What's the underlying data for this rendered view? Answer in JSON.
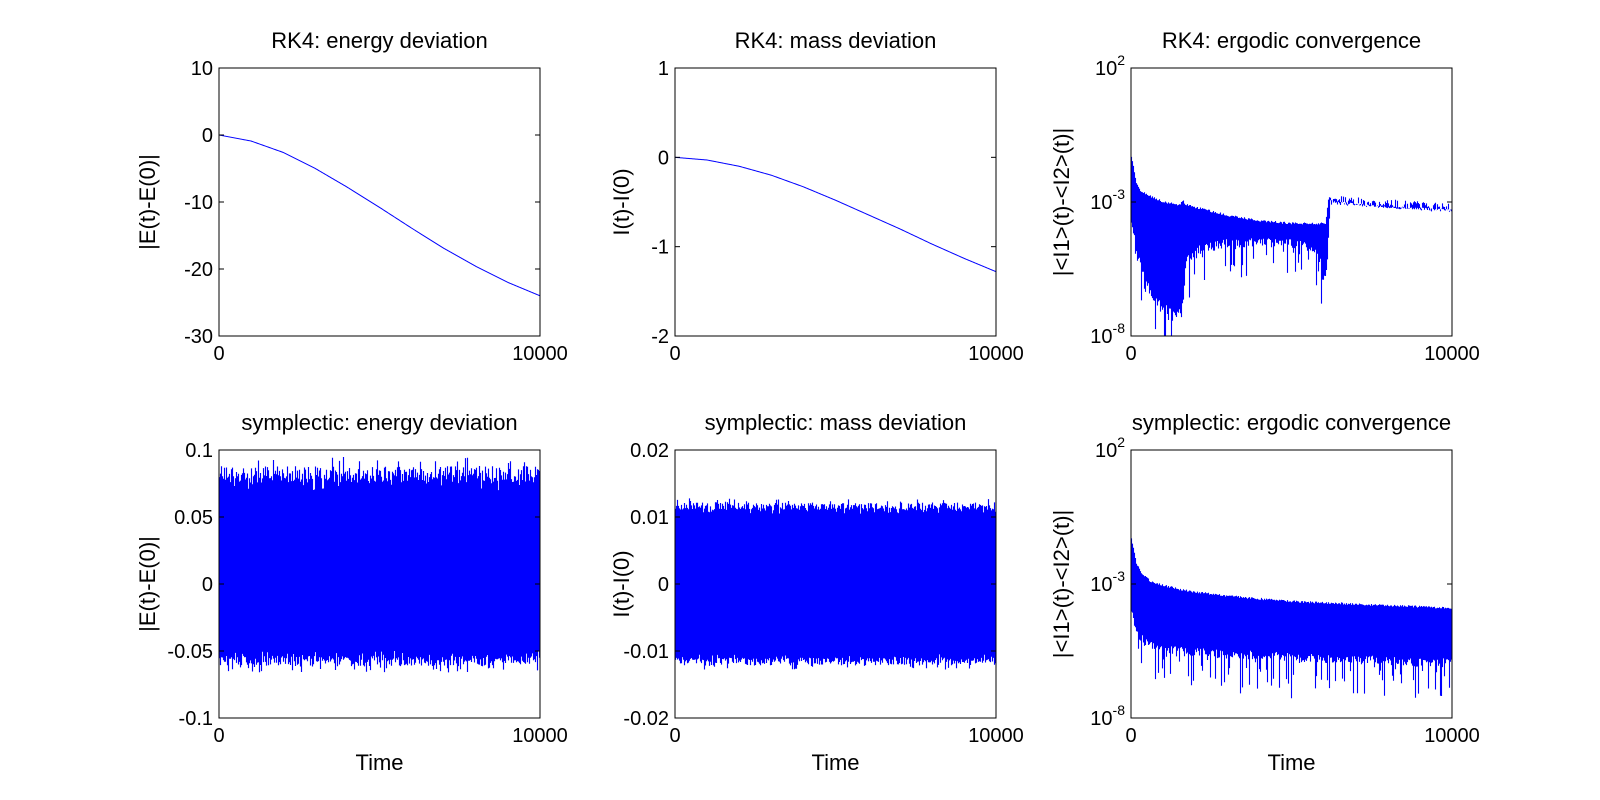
{
  "figure": {
    "background": "#ffffff",
    "line_color": "#0000ff",
    "axis_color": "#000000"
  },
  "chart_data": [
    {
      "type": "line",
      "title": "RK4: energy deviation",
      "xlabel": "",
      "ylabel": "|E(t)-E(0)|",
      "xlim": [
        0,
        10000
      ],
      "ylim": [
        -30,
        10
      ],
      "yscale": "linear",
      "xticks": [
        0,
        10000
      ],
      "xtick_labels": [
        "0",
        "10000"
      ],
      "yticks": [
        10,
        0,
        -10,
        -20,
        -30
      ],
      "ytick_labels": [
        "10",
        "0",
        "-10",
        "-20",
        "-30"
      ],
      "x": [
        0,
        1000,
        2000,
        3000,
        4000,
        5000,
        6000,
        7000,
        8000,
        9000,
        10000
      ],
      "series": [
        {
          "name": "deviation",
          "values": [
            0,
            -0.9,
            -2.6,
            -5.0,
            -7.8,
            -10.8,
            -13.9,
            -16.9,
            -19.6,
            -22.0,
            -24.0
          ]
        }
      ],
      "noise": null
    },
    {
      "type": "line",
      "title": "RK4: mass deviation",
      "xlabel": "",
      "ylabel": "I(t)-I(0)",
      "xlim": [
        0,
        10000
      ],
      "ylim": [
        -2,
        1
      ],
      "yscale": "linear",
      "xticks": [
        0,
        10000
      ],
      "xtick_labels": [
        "0",
        "10000"
      ],
      "yticks": [
        1,
        0,
        -1,
        -2
      ],
      "ytick_labels": [
        "1",
        "0",
        "-1",
        "-2"
      ],
      "x": [
        0,
        1000,
        2000,
        3000,
        4000,
        5000,
        6000,
        7000,
        8000,
        9000,
        10000
      ],
      "series": [
        {
          "name": "deviation",
          "values": [
            0,
            -0.03,
            -0.1,
            -0.2,
            -0.33,
            -0.48,
            -0.64,
            -0.8,
            -0.97,
            -1.13,
            -1.28
          ]
        }
      ],
      "noise": null
    },
    {
      "type": "line",
      "title": "RK4: ergodic convergence",
      "xlabel": "",
      "ylabel": "|<I1>(t)-<I2>(t)|",
      "xlim": [
        0,
        10000
      ],
      "ylim": [
        -8,
        2
      ],
      "yscale": "log",
      "xticks": [
        0,
        10000
      ],
      "xtick_labels": [
        "0",
        "10000"
      ],
      "yticks": [
        2,
        -3,
        -8
      ],
      "ytick_labels": [
        "10",
        "10",
        "10"
      ],
      "ytick_exponents": [
        "2",
        "-3",
        "-8"
      ],
      "upper_envelope_log10": {
        "x": [
          0,
          60,
          150,
          300,
          600,
          1000,
          1500,
          1600,
          1700,
          2000,
          3000,
          4000,
          5000,
          6000,
          6050,
          6150,
          6300,
          8000,
          10000
        ],
        "values": [
          -1.3,
          -1.6,
          -2.3,
          -2.6,
          -2.8,
          -3.0,
          -3.1,
          -2.95,
          -3.1,
          -3.2,
          -3.5,
          -3.7,
          -3.8,
          -3.8,
          -3.8,
          -2.8,
          -3.0,
          -3.2,
          -3.3
        ]
      },
      "lower_envelope_log10": {
        "x": [
          0,
          100,
          300,
          600,
          1000,
          1300,
          1600,
          1700,
          2000,
          3000,
          5000,
          5600,
          5900,
          6000,
          6100,
          6200,
          6300,
          10000
        ],
        "values": [
          -4.0,
          -4.5,
          -5.5,
          -6.5,
          -7.0,
          -7.3,
          -7.0,
          -5.2,
          -4.9,
          -4.6,
          -4.6,
          -4.8,
          -5.2,
          -6.0,
          -5.5,
          -3.0,
          -3.0,
          -3.3
        ]
      },
      "noise": {
        "spikes_below_lower": 1.5,
        "spike_frequency": 0.25,
        "spike_xmax": 6200
      }
    },
    {
      "type": "line",
      "title": "symplectic: energy deviation",
      "xlabel": "Time",
      "ylabel": "|E(t)-E(0)|",
      "xlim": [
        0,
        10000
      ],
      "ylim": [
        -0.1,
        0.1
      ],
      "yscale": "linear",
      "xticks": [
        0,
        10000
      ],
      "xtick_labels": [
        "0",
        "10000"
      ],
      "yticks": [
        0.1,
        0.05,
        0,
        -0.05,
        -0.1
      ],
      "ytick_labels": [
        "0.1",
        "0.05",
        "0",
        "-0.05",
        "-0.1"
      ],
      "band": {
        "upper_min": 0.07,
        "upper_max": 0.095,
        "lower_min": -0.066,
        "lower_max": -0.05
      },
      "noise": {
        "spike_frequency": 0.3
      }
    },
    {
      "type": "line",
      "title": "symplectic: mass deviation",
      "xlabel": "Time",
      "ylabel": "I(t)-I(0)",
      "xlim": [
        0,
        10000
      ],
      "ylim": [
        -0.02,
        0.02
      ],
      "yscale": "linear",
      "xticks": [
        0,
        10000
      ],
      "xtick_labels": [
        "0",
        "10000"
      ],
      "yticks": [
        0.02,
        0.01,
        0,
        -0.01,
        -0.02
      ],
      "ytick_labels": [
        "0.02",
        "0.01",
        "0",
        "-0.01",
        "-0.02"
      ],
      "band": {
        "upper_min": 0.0105,
        "upper_max": 0.0128,
        "lower_min": -0.0128,
        "lower_max": -0.0105
      },
      "noise": {
        "spike_frequency": 0.3
      }
    },
    {
      "type": "line",
      "title": "symplectic: ergodic convergence",
      "xlabel": "Time",
      "ylabel": "|<I1>(t)-<I2>(t)|",
      "xlim": [
        0,
        10000
      ],
      "ylim": [
        -8,
        2
      ],
      "yscale": "log",
      "xticks": [
        0,
        10000
      ],
      "xtick_labels": [
        "0",
        "10000"
      ],
      "yticks": [
        2,
        -3,
        -8
      ],
      "ytick_labels": [
        "10",
        "10",
        "10"
      ],
      "ytick_exponents": [
        "2",
        "-3",
        "-8"
      ],
      "upper_envelope_log10": {
        "x": [
          0,
          60,
          150,
          300,
          600,
          1000,
          1500,
          2000,
          3000,
          4000,
          5000,
          6000,
          7000,
          8000,
          9000,
          10000
        ],
        "values": [
          -1.3,
          -1.6,
          -2.2,
          -2.6,
          -2.9,
          -3.05,
          -3.2,
          -3.3,
          -3.45,
          -3.55,
          -3.65,
          -3.7,
          -3.75,
          -3.8,
          -3.85,
          -3.9
        ]
      },
      "lower_envelope_log10": {
        "x": [
          0,
          100,
          300,
          600,
          1000,
          2000,
          3000,
          4000,
          5000,
          6000,
          7000,
          8000,
          9000,
          10000
        ],
        "values": [
          -4.0,
          -4.6,
          -5.1,
          -5.4,
          -5.5,
          -5.6,
          -5.7,
          -5.75,
          -5.8,
          -5.85,
          -5.9,
          -5.95,
          -6.0,
          -6.0
        ]
      },
      "noise": {
        "spikes_below_lower": 1.4,
        "spike_frequency": 0.3,
        "spike_xmax": 10000
      }
    }
  ]
}
